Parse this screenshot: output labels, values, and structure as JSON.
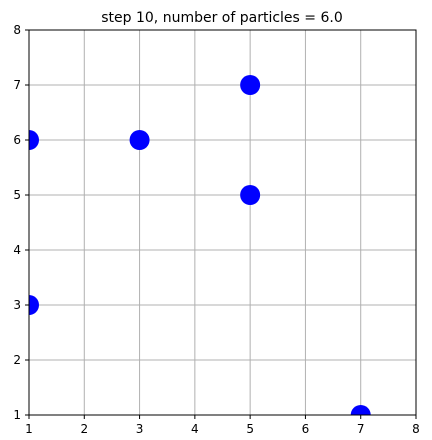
{
  "chart_data": {
    "type": "scatter",
    "title": "step 10, number of particles = 6.0",
    "xlabel": "",
    "ylabel": "",
    "xlim": [
      1,
      8
    ],
    "ylim": [
      1,
      8
    ],
    "xticks": [
      1,
      2,
      3,
      4,
      5,
      6,
      7,
      8
    ],
    "yticks": [
      1,
      2,
      3,
      4,
      5,
      6,
      7,
      8
    ],
    "xtick_labels": [
      "1",
      "2",
      "3",
      "4",
      "5",
      "6",
      "7",
      "8"
    ],
    "ytick_labels": [
      "1",
      "2",
      "3",
      "4",
      "5",
      "6",
      "7",
      "8"
    ],
    "grid": true,
    "grid_color": "#b0b0b0",
    "series": [
      {
        "color": "#0000ff",
        "points": [
          {
            "x": 1,
            "y": 6
          },
          {
            "x": 3,
            "y": 6
          },
          {
            "x": 5,
            "y": 7
          },
          {
            "x": 5,
            "y": 5
          },
          {
            "x": 1,
            "y": 3
          },
          {
            "x": 7,
            "y": 1
          }
        ]
      }
    ]
  }
}
